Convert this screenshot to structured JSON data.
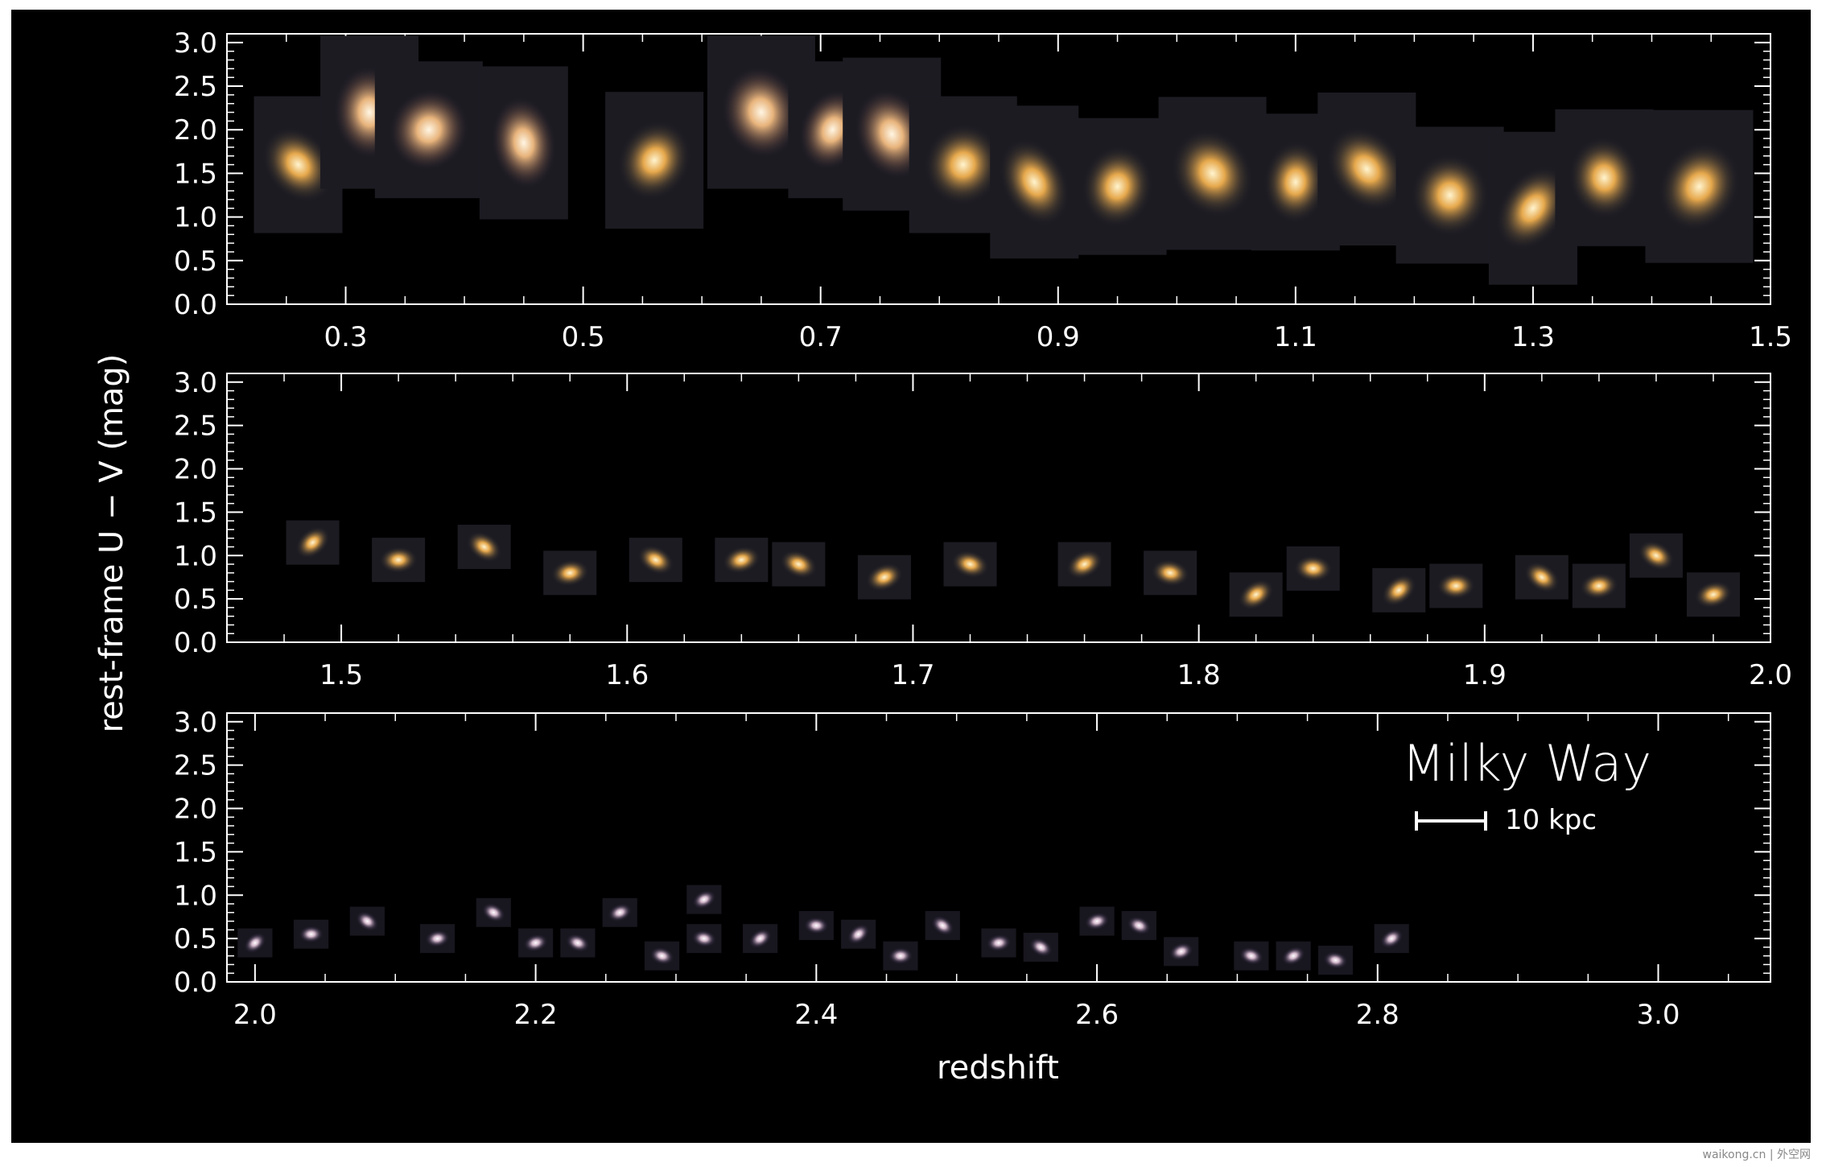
{
  "chart_data": {
    "type": "scatter",
    "marker": "galaxy-cutout-image",
    "ylabel": "rest-frame U − V (mag)",
    "xlabel": "redshift",
    "colors": {
      "background": "#000000",
      "axes": "#ffffff"
    },
    "annotation": {
      "title": "Milky Way",
      "scalebar_label": "10 kpc"
    },
    "panels": [
      {
        "xlim": [
          0.2,
          1.5
        ],
        "ylim": [
          0.0,
          3.1
        ],
        "xticklabels": [
          "0.3",
          "0.5",
          "0.7",
          "0.9",
          "1.1",
          "1.3",
          "1.5"
        ],
        "yticklabels": [
          "0.0",
          "0.5",
          "1.0",
          "1.5",
          "2.0",
          "2.5",
          "3.0"
        ],
        "points": [
          {
            "x": 0.26,
            "y": 1.6
          },
          {
            "x": 0.32,
            "y": 2.2
          },
          {
            "x": 0.37,
            "y": 2.0
          },
          {
            "x": 0.45,
            "y": 1.85
          },
          {
            "x": 0.56,
            "y": 1.65
          },
          {
            "x": 0.65,
            "y": 2.2
          },
          {
            "x": 0.71,
            "y": 2.0
          },
          {
            "x": 0.76,
            "y": 1.95
          },
          {
            "x": 0.82,
            "y": 1.6
          },
          {
            "x": 0.88,
            "y": 1.4
          },
          {
            "x": 0.95,
            "y": 1.35
          },
          {
            "x": 1.03,
            "y": 1.5
          },
          {
            "x": 1.1,
            "y": 1.4
          },
          {
            "x": 1.16,
            "y": 1.55
          },
          {
            "x": 1.23,
            "y": 1.25
          },
          {
            "x": 1.3,
            "y": 1.1
          },
          {
            "x": 1.36,
            "y": 1.45
          },
          {
            "x": 1.44,
            "y": 1.35
          }
        ]
      },
      {
        "xlim": [
          1.46,
          2.0
        ],
        "ylim": [
          0.0,
          3.1
        ],
        "xticklabels": [
          "1.5",
          "1.6",
          "1.7",
          "1.8",
          "1.9",
          "2.0"
        ],
        "yticklabels": [
          "0.0",
          "0.5",
          "1.0",
          "1.5",
          "2.0",
          "2.5",
          "3.0"
        ],
        "points": [
          {
            "x": 1.49,
            "y": 1.15
          },
          {
            "x": 1.52,
            "y": 0.95
          },
          {
            "x": 1.55,
            "y": 1.1
          },
          {
            "x": 1.58,
            "y": 0.8
          },
          {
            "x": 1.61,
            "y": 0.95
          },
          {
            "x": 1.64,
            "y": 0.95
          },
          {
            "x": 1.66,
            "y": 0.9
          },
          {
            "x": 1.69,
            "y": 0.75
          },
          {
            "x": 1.72,
            "y": 0.9
          },
          {
            "x": 1.76,
            "y": 0.9
          },
          {
            "x": 1.79,
            "y": 0.8
          },
          {
            "x": 1.82,
            "y": 0.55
          },
          {
            "x": 1.84,
            "y": 0.85
          },
          {
            "x": 1.87,
            "y": 0.6
          },
          {
            "x": 1.89,
            "y": 0.65
          },
          {
            "x": 1.92,
            "y": 0.75
          },
          {
            "x": 1.94,
            "y": 0.65
          },
          {
            "x": 1.96,
            "y": 1.0
          },
          {
            "x": 1.98,
            "y": 0.55
          }
        ]
      },
      {
        "xlim": [
          1.98,
          3.08
        ],
        "ylim": [
          0.0,
          3.1
        ],
        "xticklabels": [
          "2.0",
          "2.2",
          "2.4",
          "2.6",
          "2.8",
          "3.0"
        ],
        "yticklabels": [
          "0.0",
          "0.5",
          "1.0",
          "1.5",
          "2.0",
          "2.5",
          "3.0"
        ],
        "points": [
          {
            "x": 2.0,
            "y": 0.45
          },
          {
            "x": 2.04,
            "y": 0.55
          },
          {
            "x": 2.08,
            "y": 0.7
          },
          {
            "x": 2.13,
            "y": 0.5
          },
          {
            "x": 2.17,
            "y": 0.8
          },
          {
            "x": 2.2,
            "y": 0.45
          },
          {
            "x": 2.23,
            "y": 0.45
          },
          {
            "x": 2.26,
            "y": 0.8
          },
          {
            "x": 2.29,
            "y": 0.3
          },
          {
            "x": 2.32,
            "y": 0.95
          },
          {
            "x": 2.32,
            "y": 0.5
          },
          {
            "x": 2.36,
            "y": 0.5
          },
          {
            "x": 2.4,
            "y": 0.65
          },
          {
            "x": 2.43,
            "y": 0.55
          },
          {
            "x": 2.46,
            "y": 0.3
          },
          {
            "x": 2.49,
            "y": 0.65
          },
          {
            "x": 2.53,
            "y": 0.45
          },
          {
            "x": 2.56,
            "y": 0.4
          },
          {
            "x": 2.6,
            "y": 0.7
          },
          {
            "x": 2.63,
            "y": 0.65
          },
          {
            "x": 2.66,
            "y": 0.35
          },
          {
            "x": 2.71,
            "y": 0.3
          },
          {
            "x": 2.74,
            "y": 0.3
          },
          {
            "x": 2.77,
            "y": 0.25
          },
          {
            "x": 2.81,
            "y": 0.5
          }
        ]
      }
    ]
  },
  "watermark": "waikong.cn | 外空网"
}
